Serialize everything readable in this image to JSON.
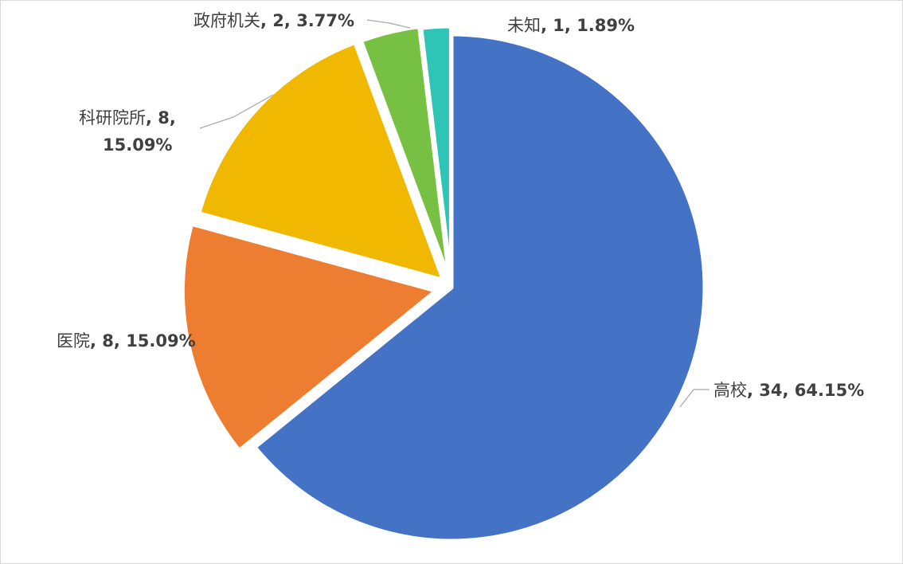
{
  "chart_data": {
    "type": "pie",
    "categories": [
      "高校",
      "医院",
      "科研院所",
      "政府机关",
      "未知"
    ],
    "values": [
      34,
      8,
      8,
      2,
      1
    ],
    "percentages": [
      "64.15%",
      "15.09%",
      "15.09%",
      "3.77%",
      "1.89%"
    ],
    "colors": [
      "#4472C4",
      "#ED7D31",
      "#F0B800",
      "#76C043",
      "#2EC4B6"
    ],
    "title": "",
    "legend": "none",
    "data_labels": [
      {
        "name": "高校",
        "value_text": ", 34, 64.15%"
      },
      {
        "name": "医院",
        "value_text": ", 8, 15.09%"
      },
      {
        "name": "科研院所",
        "value_text": ", 8,",
        "value_text_line2": "15.09%"
      },
      {
        "name": "政府机关",
        "value_text": ", 2, 3.77%"
      },
      {
        "name": "未知",
        "value_text": ", 1, 1.89%"
      }
    ]
  }
}
